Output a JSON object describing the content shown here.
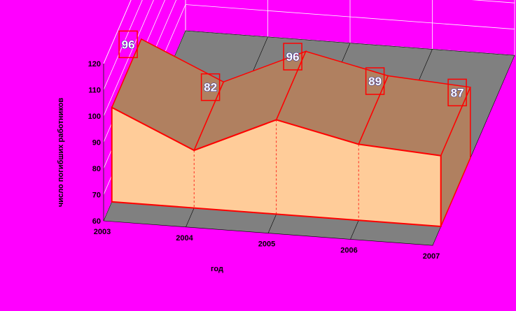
{
  "chart_data": {
    "type": "area",
    "categories": [
      "2003",
      "2004",
      "2005",
      "2006",
      "2007"
    ],
    "values": [
      96,
      82,
      96,
      89,
      87
    ],
    "title": "",
    "xlabel": "год",
    "ylabel": "число погибших работников",
    "ylim": [
      60,
      120
    ],
    "yticks": [
      "60",
      "70",
      "80",
      "90",
      "100",
      "110",
      "120"
    ],
    "data_labels": [
      "96",
      "82",
      "96",
      "89",
      "87"
    ],
    "grid": true,
    "legend": "none",
    "style": "3d",
    "colors": {
      "background": "#ff00ff",
      "area_fill": "#ffcc99",
      "area_edge": "#ff0000",
      "area_top": "#b08060",
      "floor": "#808080",
      "gridlines": "#ffffff"
    }
  }
}
